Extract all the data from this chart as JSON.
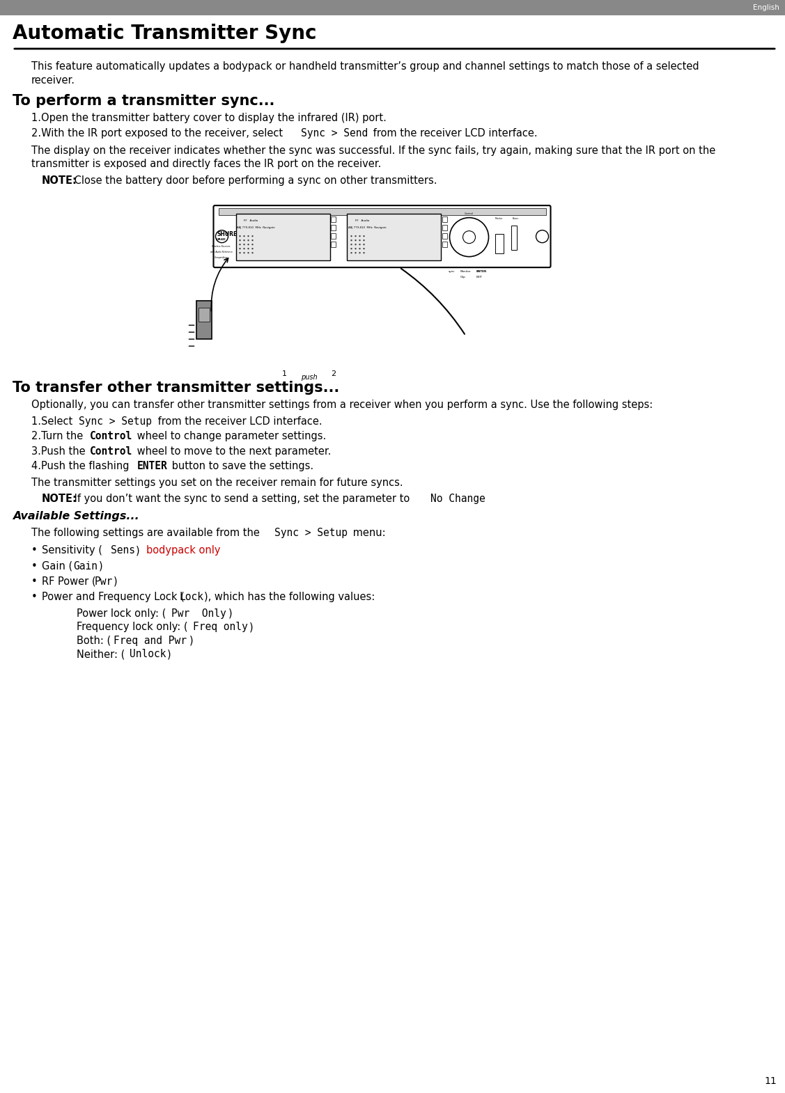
{
  "page_number": "11",
  "language_label": "English",
  "title": "Automatic Transmitter Sync",
  "bg_color": "#ffffff",
  "header_bg_color": "#888888",
  "header_text_color": "#ffffff",
  "body_color": "#000000",
  "bodypack_color": "#cc0000",
  "intro": "This feature automatically updates a bodypack or handheld transmitter’s group and channel settings to match those of a selected receiver.",
  "heading1": "To perform a transmitter sync...",
  "step1_1": "1.Open the transmitter battery cover to display the infrared (IR) port.",
  "step1_2a": "2.With the IR port exposed to the receiver, select ",
  "step1_2b": "Sync > Send",
  "step1_2c": " from the receiver LCD interface.",
  "para1a": "The display on the receiver indicates whether the sync was successful. If the sync fails, try again, making sure that the IR port on the",
  "para1b": "transmitter is exposed and directly faces the IR port on the receiver.",
  "note1_bold": "NOTE:",
  "note1_text": " Close the battery door before performing a sync on other transmitters.",
  "heading2": "To transfer other transmitter settings...",
  "para2": "Optionally, you can transfer other transmitter settings from a receiver when you perform a sync. Use the following steps:",
  "step2_1a": "1.Select ",
  "step2_1b": "Sync > Setup",
  "step2_1c": " from the receiver LCD interface.",
  "step2_2a": "2.Turn the ",
  "step2_2b": "Control",
  "step2_2c": " wheel to change parameter settings.",
  "step2_3a": "3.Push the ",
  "step2_3b": "Control",
  "step2_3c": " wheel to move to the next parameter.",
  "step2_4a": "4.Push the flashing ",
  "step2_4b": "ENTER",
  "step2_4c": " button to save the settings.",
  "para3": "The transmitter settings you set on the receiver remain for future syncs.",
  "note2_bold": "NOTE:",
  "note2_text": " If you don’t want the sync to send a setting, set the parameter to ",
  "note2_code": "No Change",
  "heading3_bold": "Available Settings...",
  "para4a": "The following settings are available from the ",
  "para4b": "Sync > Setup",
  "para4c": " menu:",
  "bullet1a": "Sensitivity (",
  "bullet1b": "Sens",
  "bullet1c": ") ",
  "bullet1d": "bodypack only",
  "bullet2a": "Gain (",
  "bullet2b": "Gain",
  "bullet2c": ")",
  "bullet3a": "RF Power (",
  "bullet3b": "Pwr",
  "bullet3c": ")",
  "bullet4a": "Power and Frequency Lock (",
  "bullet4b": "Lock",
  "bullet4c": "), which has the following values:",
  "sub1a": "Power lock only: (",
  "sub1b": "Pwr  Only",
  "sub1c": ")",
  "sub2a": "Frequency lock only: (",
  "sub2b": "Freq only",
  "sub2c": ")",
  "sub3a": "Both: (",
  "sub3b": "Freq and Pwr",
  "sub3c": ")",
  "sub4a": "Neither: (",
  "sub4b": "Unlock",
  "sub4c": ")"
}
